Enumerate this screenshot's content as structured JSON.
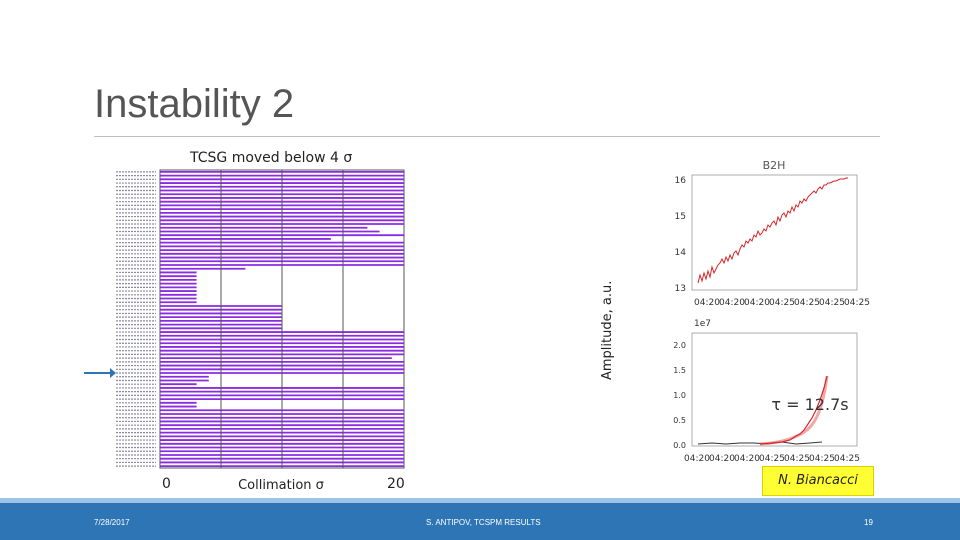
{
  "slide": {
    "title": "Instability 2",
    "subtitle": "TCSG moved below 4 σ",
    "x_tick_0": "0",
    "x_tick_20": "20",
    "x_label": "Collimation σ",
    "y_label_right": "Amplitude, a.u.",
    "credit": "N. Biancacci"
  },
  "footer": {
    "date": "7/28/2017",
    "center": "S. ANTIPOV, TCSPM RESULTS",
    "page": "19"
  },
  "colors": {
    "accent": "#2e75b6",
    "bar": "#8a2be2",
    "trace": "#d62728",
    "fit": "#f08080",
    "credit_bg": "#ffff33"
  },
  "chart_data": [
    {
      "type": "bar",
      "title": "TCSG moved below 4 σ",
      "xlabel": "Collimation σ",
      "xlim": [
        0,
        20
      ],
      "values": [
        20,
        20,
        20,
        20,
        20,
        20,
        20,
        20,
        20,
        20,
        20,
        20,
        20,
        20,
        20,
        17,
        18,
        20,
        14,
        20,
        20,
        20,
        20,
        20,
        20,
        20,
        7,
        3,
        3,
        3,
        3,
        3,
        3,
        3,
        3,
        3,
        10,
        10,
        10,
        10,
        10,
        10,
        10,
        20,
        20,
        20,
        20,
        20,
        20,
        20,
        19,
        20,
        20,
        20,
        20,
        4,
        4,
        3,
        20,
        20,
        20,
        20,
        3,
        3,
        20,
        20,
        20,
        20,
        20,
        20,
        20,
        20,
        20,
        20,
        20,
        20,
        20,
        20,
        20,
        20
      ]
    },
    {
      "type": "line",
      "title": "B2H",
      "ylim": [
        13,
        16
      ],
      "yticks": [
        "16",
        "15",
        "14",
        "13"
      ],
      "xticks": [
        "04:20",
        "04:20",
        "04:20",
        "04:25",
        "04:25",
        "04:25",
        "04:25"
      ]
    },
    {
      "type": "line",
      "scale_label": "1e7",
      "ylim": [
        0.0,
        2.0
      ],
      "yticks": [
        "2.0",
        "1.5",
        "1.0",
        "0.5",
        "0.0"
      ],
      "xticks": [
        "04:20",
        "04:20",
        "04:20",
        "04:25",
        "04:25",
        "04:25",
        "04:25"
      ],
      "annotation": "τ = 12.7s"
    }
  ]
}
